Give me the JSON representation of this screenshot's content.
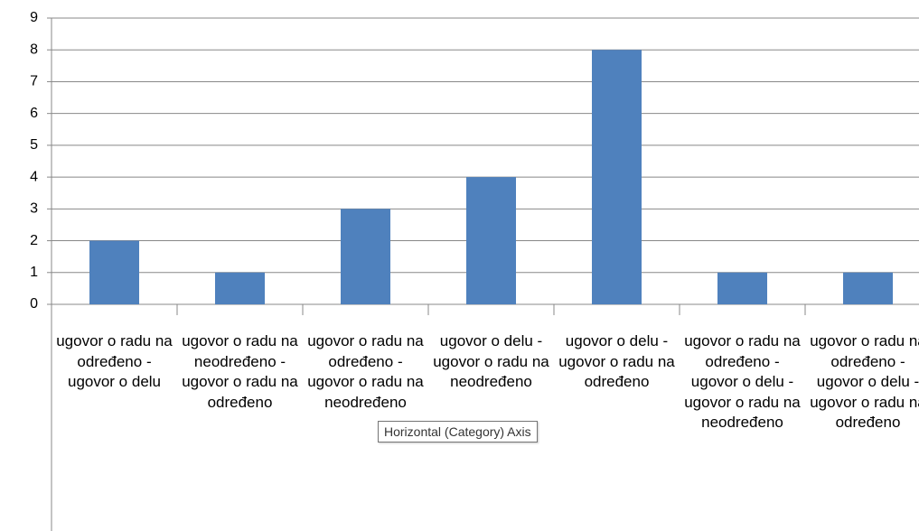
{
  "chart_data": {
    "type": "bar",
    "categories": [
      "ugovor o radu na određeno - ugovor o delu",
      "ugovor o radu na neodređeno - ugovor o radu na određeno",
      "ugovor o radu na određeno - ugovor o radu na neodređeno",
      "ugovor o delu - ugovor o radu na neodređeno",
      "ugovor o delu - ugovor o radu na određeno",
      "ugovor o radu na određeno - ugovor o delu - ugovor o radu na neodređeno",
      "ugovor o radu na određeno - ugovor o delu - ugovor o radu na određeno"
    ],
    "values": [
      2,
      1,
      3,
      4,
      8,
      1,
      1
    ],
    "color": "#4f81bd",
    "ylim": [
      0,
      9
    ],
    "yticks": [
      0,
      1,
      2,
      3,
      4,
      5,
      6,
      7,
      8,
      9
    ],
    "grid": true,
    "tooltip": "Horizontal (Category) Axis"
  }
}
